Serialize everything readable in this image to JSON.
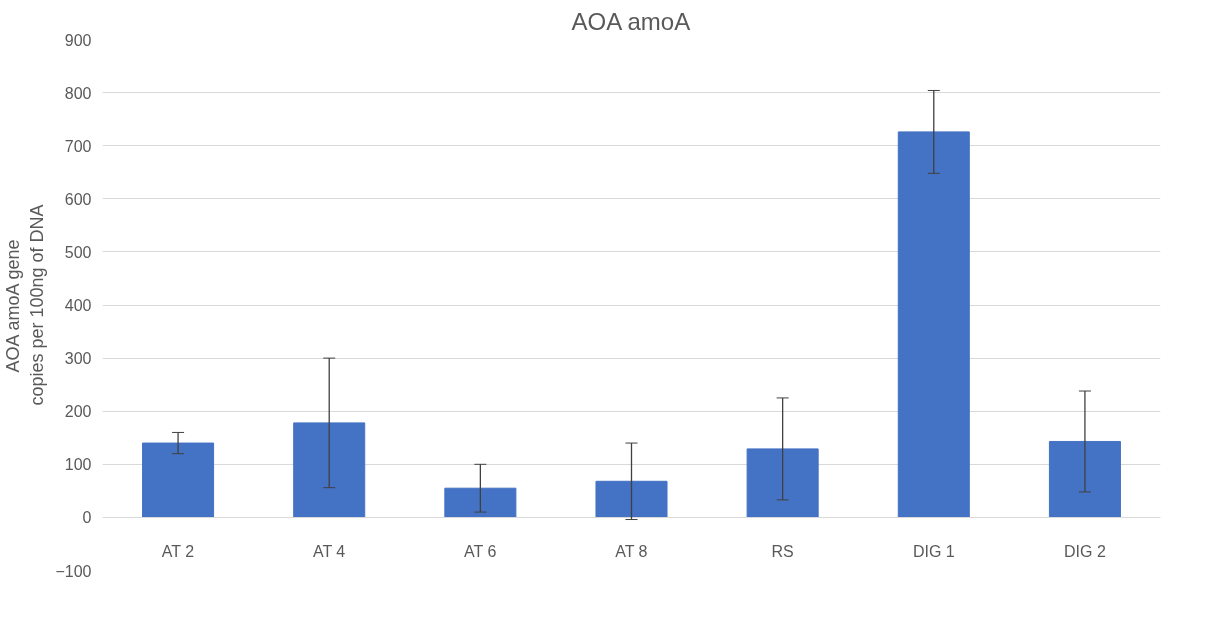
{
  "chart_data": {
    "type": "bar",
    "title": "AOA amoA",
    "ylabel": "AOA amoA gene copies per 100ng of DNA",
    "categories": [
      "AT 2",
      "AT 4",
      "AT 6",
      "AT 8",
      "RS",
      "DIG 1",
      "DIG 2"
    ],
    "values": [
      140,
      178,
      55,
      68,
      129,
      726,
      143
    ],
    "errors": [
      20,
      122,
      45,
      72,
      96,
      78,
      95
    ],
    "color": "#4472c4",
    "ylim": [
      -100,
      900
    ],
    "yticks": [
      -100,
      0,
      100,
      200,
      300,
      400,
      500,
      600,
      700,
      800,
      900
    ],
    "grid": "y"
  }
}
